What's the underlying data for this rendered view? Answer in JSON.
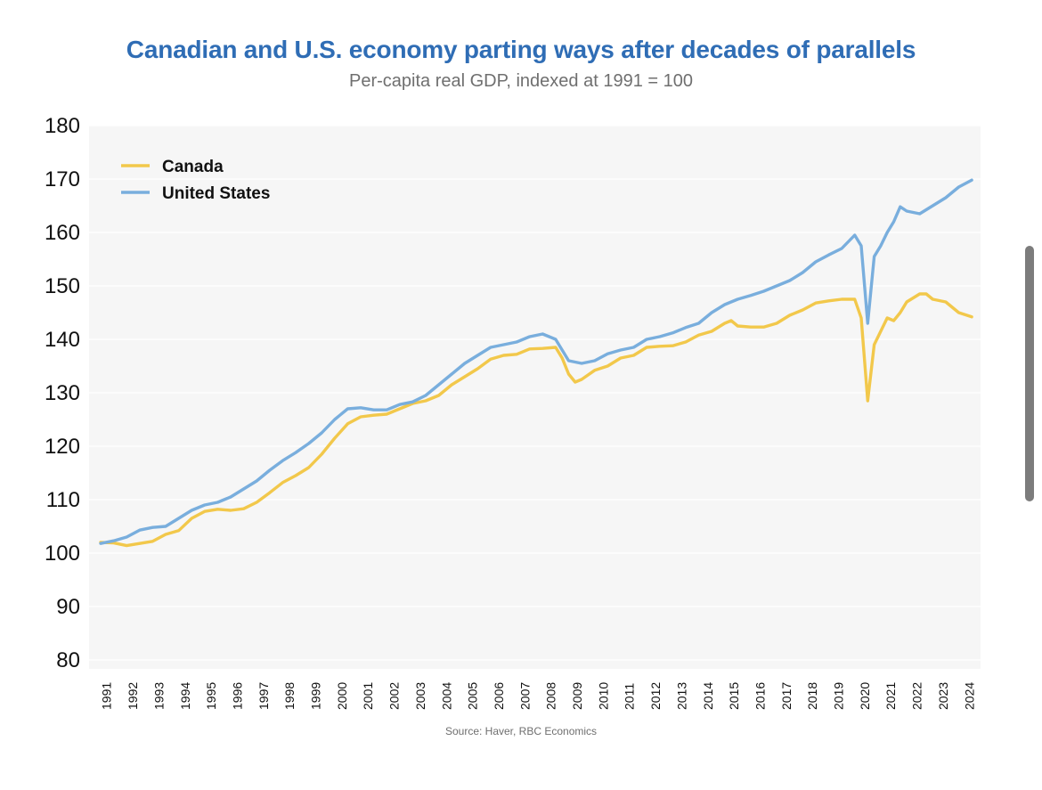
{
  "title": "Canadian and U.S. economy parting ways after decades of parallels",
  "subtitle": "Per-capita real GDP, indexed at 1991 = 100",
  "source": "Source: Haver, RBC Economics",
  "colors": {
    "canada": "#f2c84b",
    "us": "#79aedd",
    "title": "#2f6db5",
    "plot_bg": "#f6f6f6"
  },
  "chart_data": {
    "type": "line",
    "title": "Canadian and U.S. economy parting ways after decades of parallels",
    "subtitle": "Per-capita real GDP, indexed at 1991 = 100",
    "xlabel": "",
    "ylabel": "",
    "ylim": [
      80,
      180
    ],
    "yticks": [
      "80",
      "90",
      "100",
      "110",
      "120",
      "130",
      "140",
      "150",
      "160",
      "170",
      "180"
    ],
    "xticks": [
      "1991",
      "1992",
      "1993",
      "1994",
      "1995",
      "1996",
      "1997",
      "1998",
      "1999",
      "2000",
      "2001",
      "2002",
      "2003",
      "2004",
      "2005",
      "2006",
      "2007",
      "2008",
      "2009",
      "2010",
      "2011",
      "2012",
      "2013",
      "2014",
      "2015",
      "2016",
      "2017",
      "2018",
      "2019",
      "2020",
      "2021",
      "2022",
      "2023",
      "2024"
    ],
    "xlim": [
      1991.0,
      2024.6
    ],
    "grid": true,
    "legend_position": "top-left",
    "series": [
      {
        "name": "Canada",
        "points": [
          [
            1991.0,
            102.0
          ],
          [
            1991.5,
            101.9
          ],
          [
            1992.0,
            101.4
          ],
          [
            1992.5,
            101.8
          ],
          [
            1993.0,
            102.2
          ],
          [
            1993.5,
            103.5
          ],
          [
            1994.0,
            104.2
          ],
          [
            1994.5,
            106.5
          ],
          [
            1995.0,
            107.8
          ],
          [
            1995.5,
            108.2
          ],
          [
            1996.0,
            108.0
          ],
          [
            1996.5,
            108.3
          ],
          [
            1997.0,
            109.5
          ],
          [
            1997.5,
            111.3
          ],
          [
            1998.0,
            113.2
          ],
          [
            1998.5,
            114.5
          ],
          [
            1999.0,
            116.0
          ],
          [
            1999.5,
            118.5
          ],
          [
            2000.0,
            121.5
          ],
          [
            2000.5,
            124.2
          ],
          [
            2001.0,
            125.5
          ],
          [
            2001.5,
            125.8
          ],
          [
            2002.0,
            126.0
          ],
          [
            2002.5,
            127.0
          ],
          [
            2003.0,
            128.0
          ],
          [
            2003.5,
            128.5
          ],
          [
            2004.0,
            129.5
          ],
          [
            2004.5,
            131.5
          ],
          [
            2005.0,
            133.0
          ],
          [
            2005.5,
            134.5
          ],
          [
            2006.0,
            136.3
          ],
          [
            2006.5,
            137.0
          ],
          [
            2007.0,
            137.2
          ],
          [
            2007.5,
            138.2
          ],
          [
            2008.0,
            138.3
          ],
          [
            2008.5,
            138.5
          ],
          [
            2008.75,
            136.5
          ],
          [
            2009.0,
            133.5
          ],
          [
            2009.25,
            132.0
          ],
          [
            2009.5,
            132.5
          ],
          [
            2010.0,
            134.2
          ],
          [
            2010.5,
            135.0
          ],
          [
            2011.0,
            136.5
          ],
          [
            2011.5,
            137.0
          ],
          [
            2012.0,
            138.5
          ],
          [
            2012.5,
            138.7
          ],
          [
            2013.0,
            138.8
          ],
          [
            2013.5,
            139.5
          ],
          [
            2014.0,
            140.8
          ],
          [
            2014.5,
            141.5
          ],
          [
            2015.0,
            143.0
          ],
          [
            2015.25,
            143.5
          ],
          [
            2015.5,
            142.5
          ],
          [
            2016.0,
            142.3
          ],
          [
            2016.5,
            142.3
          ],
          [
            2017.0,
            143.0
          ],
          [
            2017.5,
            144.5
          ],
          [
            2018.0,
            145.5
          ],
          [
            2018.5,
            146.8
          ],
          [
            2019.0,
            147.2
          ],
          [
            2019.5,
            147.5
          ],
          [
            2020.0,
            147.5
          ],
          [
            2020.25,
            144.0
          ],
          [
            2020.5,
            128.5
          ],
          [
            2020.75,
            139.0
          ],
          [
            2021.0,
            141.5
          ],
          [
            2021.25,
            144.0
          ],
          [
            2021.5,
            143.5
          ],
          [
            2021.75,
            145.0
          ],
          [
            2022.0,
            147.0
          ],
          [
            2022.5,
            148.5
          ],
          [
            2022.75,
            148.5
          ],
          [
            2023.0,
            147.5
          ],
          [
            2023.5,
            147.0
          ],
          [
            2024.0,
            145.0
          ],
          [
            2024.5,
            144.2
          ]
        ]
      },
      {
        "name": "United States",
        "points": [
          [
            1991.0,
            101.8
          ],
          [
            1991.5,
            102.3
          ],
          [
            1992.0,
            103.0
          ],
          [
            1992.5,
            104.3
          ],
          [
            1993.0,
            104.8
          ],
          [
            1993.5,
            105.0
          ],
          [
            1994.0,
            106.5
          ],
          [
            1994.5,
            108.0
          ],
          [
            1995.0,
            109.0
          ],
          [
            1995.5,
            109.5
          ],
          [
            1996.0,
            110.5
          ],
          [
            1996.5,
            112.0
          ],
          [
            1997.0,
            113.5
          ],
          [
            1997.5,
            115.5
          ],
          [
            1998.0,
            117.3
          ],
          [
            1998.5,
            118.8
          ],
          [
            1999.0,
            120.5
          ],
          [
            1999.5,
            122.5
          ],
          [
            2000.0,
            125.0
          ],
          [
            2000.5,
            127.0
          ],
          [
            2001.0,
            127.2
          ],
          [
            2001.5,
            126.8
          ],
          [
            2002.0,
            126.8
          ],
          [
            2002.5,
            127.8
          ],
          [
            2003.0,
            128.3
          ],
          [
            2003.5,
            129.5
          ],
          [
            2004.0,
            131.5
          ],
          [
            2004.5,
            133.5
          ],
          [
            2005.0,
            135.5
          ],
          [
            2005.5,
            137.0
          ],
          [
            2006.0,
            138.5
          ],
          [
            2006.5,
            139.0
          ],
          [
            2007.0,
            139.5
          ],
          [
            2007.5,
            140.5
          ],
          [
            2008.0,
            141.0
          ],
          [
            2008.5,
            140.0
          ],
          [
            2008.75,
            138.0
          ],
          [
            2009.0,
            136.0
          ],
          [
            2009.5,
            135.5
          ],
          [
            2010.0,
            136.0
          ],
          [
            2010.5,
            137.3
          ],
          [
            2011.0,
            138.0
          ],
          [
            2011.5,
            138.5
          ],
          [
            2012.0,
            140.0
          ],
          [
            2012.5,
            140.5
          ],
          [
            2013.0,
            141.2
          ],
          [
            2013.5,
            142.2
          ],
          [
            2014.0,
            143.0
          ],
          [
            2014.5,
            145.0
          ],
          [
            2015.0,
            146.5
          ],
          [
            2015.5,
            147.5
          ],
          [
            2016.0,
            148.2
          ],
          [
            2016.5,
            149.0
          ],
          [
            2017.0,
            150.0
          ],
          [
            2017.5,
            151.0
          ],
          [
            2018.0,
            152.5
          ],
          [
            2018.5,
            154.5
          ],
          [
            2019.0,
            155.8
          ],
          [
            2019.5,
            157.0
          ],
          [
            2020.0,
            159.5
          ],
          [
            2020.25,
            157.5
          ],
          [
            2020.5,
            143.0
          ],
          [
            2020.75,
            155.5
          ],
          [
            2021.0,
            157.5
          ],
          [
            2021.25,
            160.0
          ],
          [
            2021.5,
            162.0
          ],
          [
            2021.75,
            164.8
          ],
          [
            2022.0,
            164.0
          ],
          [
            2022.5,
            163.5
          ],
          [
            2023.0,
            165.0
          ],
          [
            2023.5,
            166.5
          ],
          [
            2024.0,
            168.5
          ],
          [
            2024.5,
            169.8
          ]
        ]
      }
    ]
  }
}
